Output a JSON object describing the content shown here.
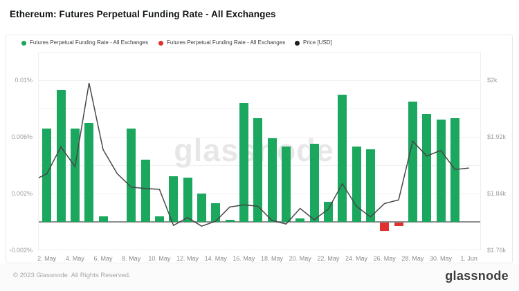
{
  "page": {
    "title": "Ethereum: Futures Perpetual Funding Rate - All Exchanges"
  },
  "legend": {
    "items": [
      {
        "label": "Futures Perpetual Funding Rate - All Exchanges",
        "color": "#1ba75e"
      },
      {
        "label": "Futures Perpetual Funding Rate - All Exchanges",
        "color": "#e0312e"
      },
      {
        "label": "Price [USD]",
        "color": "#1d1d1d"
      }
    ]
  },
  "watermark": "glassnode",
  "footer": {
    "copyright": "© 2023 Glassnode. All Rights Reserved.",
    "logo": "glassnode"
  },
  "chart_data": {
    "type": "combo_bar_line",
    "title": "Ethereum: Futures Perpetual Funding Rate - All Exchanges",
    "x": {
      "dates": [
        "1. May",
        "2. May",
        "3. May",
        "4. May",
        "5. May",
        "6. May",
        "7. May",
        "8. May",
        "9. May",
        "10. May",
        "11. May",
        "12. May",
        "13. May",
        "14. May",
        "15. May",
        "16. May",
        "17. May",
        "18. May",
        "19. May",
        "20. May",
        "21. May",
        "22. May",
        "23. May",
        "24. May",
        "25. May",
        "26. May",
        "27. May",
        "28. May",
        "29. May",
        "30. May",
        "31. May",
        "1. Jun"
      ],
      "ticks": [
        {
          "d": 2,
          "label": "2. May"
        },
        {
          "d": 4,
          "label": "4. May"
        },
        {
          "d": 6,
          "label": "6. May"
        },
        {
          "d": 8,
          "label": "8. May"
        },
        {
          "d": 10,
          "label": "10. May"
        },
        {
          "d": 12,
          "label": "12. May"
        },
        {
          "d": 14,
          "label": "14. May"
        },
        {
          "d": 16,
          "label": "16. May"
        },
        {
          "d": 18,
          "label": "18. May"
        },
        {
          "d": 20,
          "label": "20. May"
        },
        {
          "d": 22,
          "label": "22. May"
        },
        {
          "d": 24,
          "label": "24. May"
        },
        {
          "d": 26,
          "label": "26. May"
        },
        {
          "d": 28,
          "label": "28. May"
        },
        {
          "d": 30,
          "label": "30. May"
        },
        {
          "d": 32,
          "label": "1. Jun"
        }
      ]
    },
    "series": [
      {
        "name": "Futures Perpetual Funding Rate - All Exchanges",
        "type": "bar",
        "unit": "%",
        "color_positive": "#1ba75e",
        "color_negative": "#e0312e",
        "values": [
          null,
          0.0066,
          0.0093,
          0.0066,
          0.007,
          0.0004,
          0,
          0.0066,
          0.0044,
          0.0004,
          0.0032,
          0.0031,
          0.002,
          0.0013,
          0.00015,
          0.0084,
          0.0073,
          0.0059,
          0.0053,
          0.00025,
          0.0055,
          0.0014,
          0.009,
          0.0053,
          0.0051,
          -0.0006,
          -0.00025,
          0.0085,
          0.0076,
          0.0072,
          0.0073,
          null
        ]
      },
      {
        "name": "Price [USD]",
        "type": "line",
        "unit": "USD",
        "color": "#474747",
        "values": [
          1858,
          1868,
          1906,
          1878,
          1996,
          1902,
          1868,
          1849,
          1847,
          1846,
          1795,
          1806,
          1794,
          1801,
          1821,
          1824,
          1822,
          1802,
          1797,
          1819,
          1803,
          1818,
          1854,
          1822,
          1807,
          1826,
          1831,
          1914,
          1893,
          1901,
          1874,
          1876
        ]
      }
    ],
    "y_left": {
      "range": [
        -0.002,
        0.012
      ],
      "gridline_step": 0.002,
      "ticks": [
        {
          "v": 0.01,
          "label": "0.01%"
        },
        {
          "v": 0.006,
          "label": "0.006%"
        },
        {
          "v": 0.002,
          "label": "0.002%"
        },
        {
          "v": -0.002,
          "label": "-0.002%"
        }
      ]
    },
    "y_right": {
      "range": [
        1760,
        2040
      ],
      "ticks": [
        {
          "v": 2000,
          "label": "$2k"
        },
        {
          "v": 1920,
          "label": "$1.92k"
        },
        {
          "v": 1840,
          "label": "$1.84k"
        },
        {
          "v": 1760,
          "label": "$1.76k"
        }
      ]
    },
    "zero_line": 0,
    "legend_position": "top-left",
    "grid": true
  }
}
